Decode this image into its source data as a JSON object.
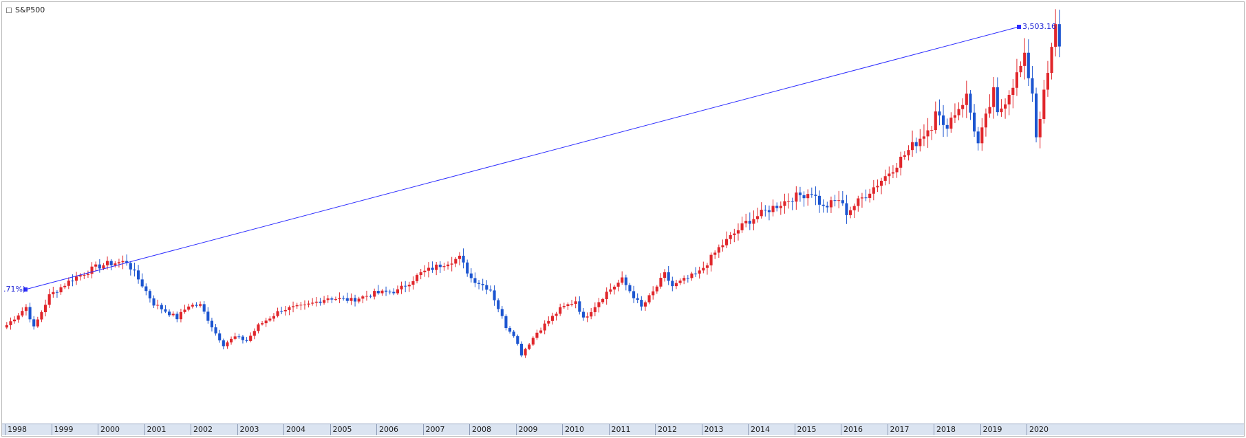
{
  "window": {
    "series_label": "S&P500"
  },
  "annotations": {
    "end_value": "3,503.16",
    "start_pct": ".71%)"
  },
  "colors": {
    "up": "#e0262b",
    "down": "#1c55d0",
    "trendline": "#2d2dff",
    "axis_bg": "#dbe4f1"
  },
  "chart_data": {
    "type": "candlestick",
    "title": "S&P500",
    "frequency": "monthly",
    "x_ticks": [
      "1998",
      "1999",
      "2000",
      "2001",
      "2002",
      "2003",
      "2004",
      "2005",
      "2006",
      "2007",
      "2008",
      "2009",
      "2010",
      "2011",
      "2012",
      "2013",
      "2014",
      "2015",
      "2016",
      "2017",
      "2018",
      "2019",
      "2020"
    ],
    "ylim": [
      600,
      3650
    ],
    "grid": false,
    "trendline": {
      "from": {
        "date": "1998-06",
        "value": 1120
      },
      "to": {
        "date": "2020-02",
        "value": 3503.16
      }
    },
    "anchors": [
      [
        "1998-01",
        980
      ],
      [
        "1998-06",
        1133
      ],
      [
        "1998-08",
        957
      ],
      [
        "1998-12",
        1229
      ],
      [
        "1999-06",
        1372
      ],
      [
        "1999-12",
        1469
      ],
      [
        "2000-03",
        1499
      ],
      [
        "2000-08",
        1517
      ],
      [
        "2000-12",
        1320
      ],
      [
        "2001-03",
        1160
      ],
      [
        "2001-09",
        1040
      ],
      [
        "2001-12",
        1148
      ],
      [
        "2002-03",
        1147
      ],
      [
        "2002-07",
        912
      ],
      [
        "2002-09",
        815
      ],
      [
        "2002-12",
        880
      ],
      [
        "2003-03",
        848
      ],
      [
        "2003-06",
        975
      ],
      [
        "2003-12",
        1112
      ],
      [
        "2004-06",
        1140
      ],
      [
        "2004-12",
        1212
      ],
      [
        "2005-06",
        1191
      ],
      [
        "2005-12",
        1248
      ],
      [
        "2006-06",
        1270
      ],
      [
        "2006-12",
        1418
      ],
      [
        "2007-06",
        1503
      ],
      [
        "2007-10",
        1549
      ],
      [
        "2008-01",
        1378
      ],
      [
        "2008-06",
        1280
      ],
      [
        "2008-10",
        968
      ],
      [
        "2008-12",
        903
      ],
      [
        "2009-02",
        735
      ],
      [
        "2009-06",
        919
      ],
      [
        "2009-12",
        1115
      ],
      [
        "2010-04",
        1187
      ],
      [
        "2010-06",
        1031
      ],
      [
        "2010-12",
        1258
      ],
      [
        "2011-04",
        1364
      ],
      [
        "2011-09",
        1131
      ],
      [
        "2011-12",
        1258
      ],
      [
        "2012-03",
        1408
      ],
      [
        "2012-05",
        1310
      ],
      [
        "2012-12",
        1426
      ],
      [
        "2013-05",
        1631
      ],
      [
        "2013-12",
        1848
      ],
      [
        "2014-06",
        1960
      ],
      [
        "2014-12",
        2059
      ],
      [
        "2015-05",
        2107
      ],
      [
        "2015-08",
        1972
      ],
      [
        "2015-12",
        2044
      ],
      [
        "2016-02",
        1932
      ],
      [
        "2016-12",
        2239
      ],
      [
        "2017-12",
        2674
      ],
      [
        "2018-01",
        2824
      ],
      [
        "2018-03",
        2640
      ],
      [
        "2018-09",
        2914
      ],
      [
        "2018-12",
        2507
      ],
      [
        "2019-04",
        2946
      ],
      [
        "2019-05",
        2752
      ],
      [
        "2019-12",
        3231
      ],
      [
        "2020-02",
        2954
      ],
      [
        "2020-03",
        2585
      ],
      [
        "2020-06",
        3100
      ],
      [
        "2020-08",
        3500
      ],
      [
        "2020-09",
        3363
      ]
    ]
  }
}
